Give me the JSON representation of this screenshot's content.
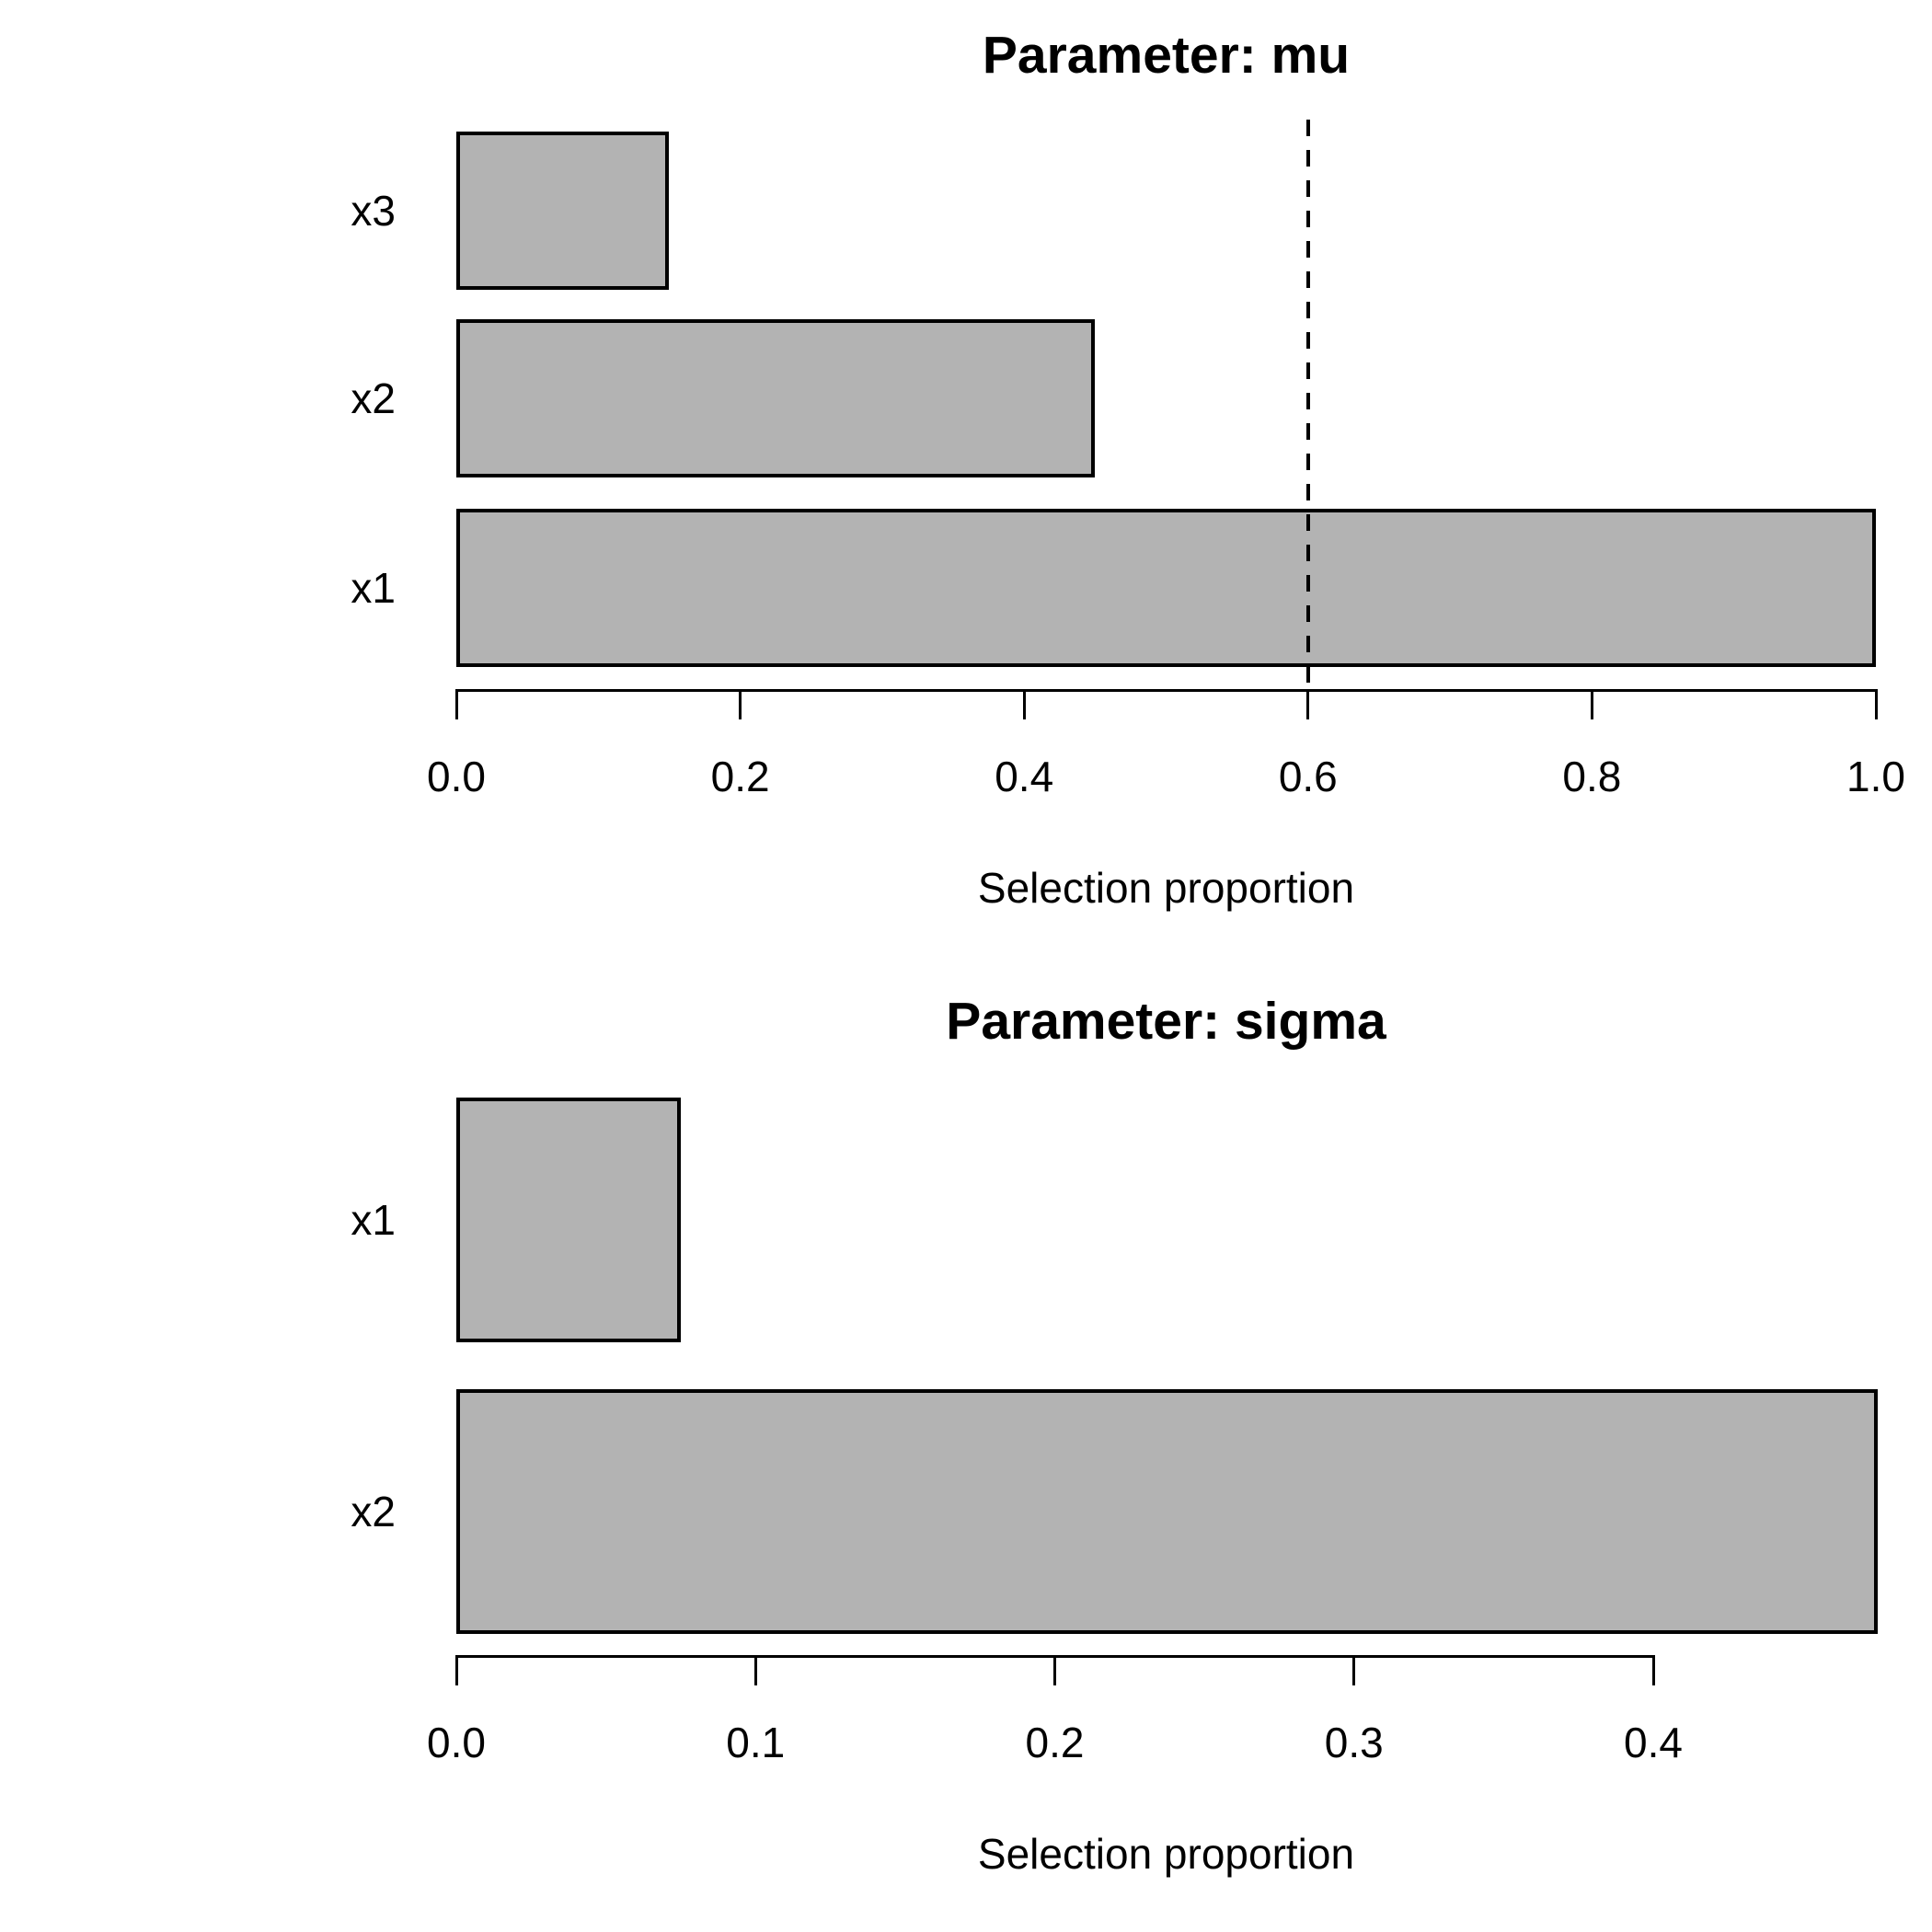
{
  "page": {
    "background": "#ffffff",
    "text_color": "#000000"
  },
  "chart_data": [
    {
      "type": "bar",
      "orientation": "horizontal",
      "title": "Parameter: mu",
      "xlabel": "Selection proportion",
      "categories_top_to_bottom": [
        "x3",
        "x2",
        "x1"
      ],
      "values_top_to_bottom": [
        0.15,
        0.45,
        1.0
      ],
      "xlim": [
        0,
        1.0
      ],
      "xticks": [
        0,
        0.2,
        0.4,
        0.6,
        0.8,
        1.0
      ],
      "xtick_labels": [
        "0.0",
        "0.2",
        "0.4",
        "0.6",
        "0.8",
        "1.0"
      ],
      "reference_line": {
        "x": 0.6,
        "style": "dashed",
        "color": "#000000"
      },
      "bar_fill": "#b3b3b3",
      "bar_border": "#000000",
      "grid": false,
      "legend": null
    },
    {
      "type": "bar",
      "orientation": "horizontal",
      "title": "Parameter: sigma",
      "xlabel": "Selection proportion",
      "categories_top_to_bottom": [
        "x1",
        "x2"
      ],
      "values_top_to_bottom": [
        0.075,
        0.475
      ],
      "xlim": [
        0,
        0.475
      ],
      "xticks": [
        0,
        0.1,
        0.2,
        0.3,
        0.4
      ],
      "xtick_labels": [
        "0.0",
        "0.1",
        "0.2",
        "0.3",
        "0.4"
      ],
      "reference_line": null,
      "bar_fill": "#b3b3b3",
      "bar_border": "#000000",
      "grid": false,
      "legend": null
    }
  ]
}
